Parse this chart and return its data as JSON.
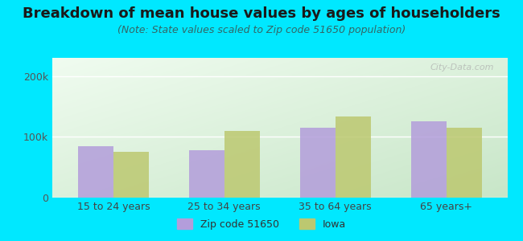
{
  "title": "Breakdown of mean house values by ages of householders",
  "subtitle": "(Note: State values scaled to Zip code 51650 population)",
  "categories": [
    "15 to 24 years",
    "25 to 34 years",
    "35 to 64 years",
    "65 years+"
  ],
  "zip_values": [
    85000,
    78000,
    115000,
    125000
  ],
  "iowa_values": [
    75000,
    110000,
    133000,
    115000
  ],
  "zip_color": "#b39ddb",
  "iowa_color": "#bcc870",
  "background_outer": "#00e8ff",
  "background_inner_topleft": "#e0f0e0",
  "background_inner_bottomright": "#d8ecd0",
  "ylim": [
    0,
    230000
  ],
  "yticks": [
    0,
    100000,
    200000
  ],
  "ytick_labels": [
    "0",
    "100k",
    "200k"
  ],
  "bar_width": 0.32,
  "legend_zip": "Zip code 51650",
  "legend_iowa": "Iowa",
  "watermark": "City-Data.com",
  "title_fontsize": 13,
  "subtitle_fontsize": 9,
  "tick_fontsize": 9,
  "legend_fontsize": 9
}
